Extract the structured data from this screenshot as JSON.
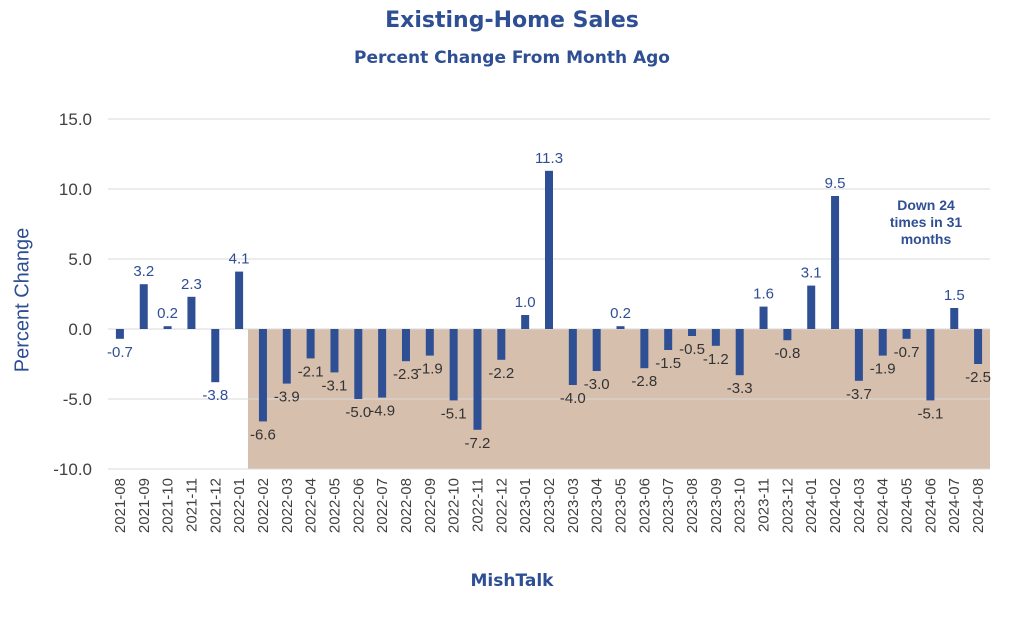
{
  "chart_data": {
    "type": "bar",
    "title": "Existing-Home Sales",
    "subtitle": "Percent Change From Month Ago",
    "ylabel": "Percent Change",
    "xlabel": "MishTalk",
    "ylim": [
      -10,
      15
    ],
    "yticks": [
      "15.0",
      "10.0",
      "5.0",
      "0.0",
      "-5.0",
      "-10.0"
    ],
    "grid": true,
    "categories": [
      "2021-08",
      "2021-09",
      "2021-10",
      "2021-11",
      "2021-12",
      "2022-01",
      "2022-02",
      "2022-03",
      "2022-04",
      "2022-05",
      "2022-06",
      "2022-07",
      "2022-08",
      "2022-09",
      "2022-10",
      "2022-11",
      "2022-12",
      "2023-01",
      "2023-02",
      "2023-03",
      "2023-04",
      "2023-05",
      "2023-06",
      "2023-07",
      "2023-08",
      "2023-09",
      "2023-10",
      "2023-11",
      "2023-12",
      "2024-01",
      "2024-02",
      "2024-03",
      "2024-04",
      "2024-05",
      "2024-06",
      "2024-07",
      "2024-08"
    ],
    "values": [
      -0.7,
      3.2,
      0.2,
      2.3,
      -3.8,
      4.1,
      -6.6,
      -3.9,
      -2.1,
      -3.1,
      -5.0,
      -4.9,
      -2.3,
      -1.9,
      -5.1,
      -7.2,
      -2.2,
      1.0,
      11.3,
      -4.0,
      -3.0,
      0.2,
      -2.8,
      -1.5,
      -0.5,
      -1.2,
      -3.3,
      1.6,
      -0.8,
      3.1,
      9.5,
      -3.7,
      -1.9,
      -0.7,
      -5.1,
      1.5,
      -2.5
    ],
    "data_labels": [
      "-0.7",
      "3.2",
      "0.2",
      "2.3",
      "-3.8",
      "4.1",
      "-6.6",
      "-3.9",
      "-2.1",
      "-3.1",
      "-5.0",
      "-4.9",
      "-2.3",
      "-1.9",
      "-5.1",
      "-7.2",
      "-2.2",
      "1.0",
      "11.3",
      "-4.0",
      "-3.0",
      "0.2",
      "-2.8",
      "-1.5",
      "-0.5",
      "-1.2",
      "-3.3",
      "1.6",
      "-0.8",
      "3.1",
      "9.5",
      "-3.7",
      "-1.9",
      "-0.7",
      "-5.1",
      "1.5",
      "-2.5"
    ],
    "shaded_region": {
      "from": "2022-02",
      "to": "2024-08",
      "y_from": -10,
      "y_to": 0
    },
    "annotation": [
      "Down 24",
      "times in 31",
      "months"
    ],
    "colors": {
      "bar": "#2f4f94",
      "label": "#2f4f94",
      "shade": "#d7bfad",
      "grid": "#d9d9d9",
      "axis_text": "#404040"
    }
  }
}
